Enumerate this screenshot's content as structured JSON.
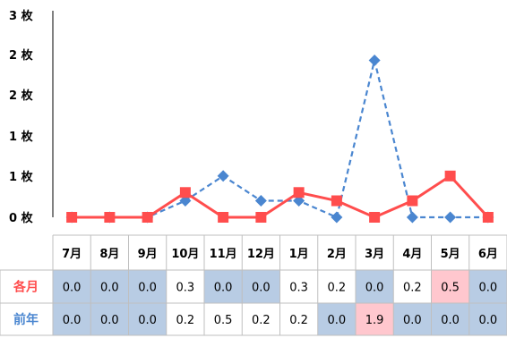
{
  "chart_data": {
    "type": "line",
    "title": "",
    "xlabel": "",
    "ylabel": "",
    "categories": [
      "7月",
      "8月",
      "9月",
      "10月",
      "11月",
      "12月",
      "1月",
      "2月",
      "3月",
      "4月",
      "5月",
      "6月"
    ],
    "y_tick_labels": [
      "0 枚",
      "1 枚",
      "1 枚",
      "2 枚",
      "2 枚",
      "3 枚"
    ],
    "ylim": [
      0,
      2.5
    ],
    "grid": false,
    "series": [
      {
        "name": "各月",
        "values": [
          0.0,
          0.0,
          0.0,
          0.3,
          0.0,
          0.0,
          0.3,
          0.2,
          0.0,
          0.2,
          0.5,
          0.0
        ],
        "color": "#ff4d4d",
        "style": "solid",
        "marker": "square"
      },
      {
        "name": "前年",
        "values": [
          0.0,
          0.0,
          0.0,
          0.2,
          0.5,
          0.2,
          0.2,
          0.0,
          1.9,
          0.0,
          0.0,
          0.0
        ],
        "color": "#4a86d0",
        "style": "dashed",
        "marker": "diamond"
      }
    ],
    "table": {
      "rows": [
        {
          "label": "各月",
          "cells": [
            "0.0",
            "0.0",
            "0.0",
            "0.3",
            "0.0",
            "0.0",
            "0.3",
            "0.2",
            "0.0",
            "0.2",
            "0.5",
            "0.0"
          ],
          "highlight": [
            "blue",
            "blue",
            "blue",
            "none",
            "blue",
            "blue",
            "none",
            "none",
            "blue",
            "none",
            "pink",
            "blue"
          ]
        },
        {
          "label": "前年",
          "cells": [
            "0.0",
            "0.0",
            "0.0",
            "0.2",
            "0.5",
            "0.2",
            "0.2",
            "0.0",
            "1.9",
            "0.0",
            "0.0",
            "0.0"
          ],
          "highlight": [
            "blue",
            "blue",
            "blue",
            "none",
            "none",
            "none",
            "none",
            "blue",
            "pink",
            "blue",
            "blue",
            "blue"
          ]
        }
      ]
    }
  },
  "colors": {
    "highlight_blue": "#b8cce4",
    "highlight_pink": "#ffc7ce",
    "border": "#bfbfbf",
    "axis": "#000000"
  }
}
